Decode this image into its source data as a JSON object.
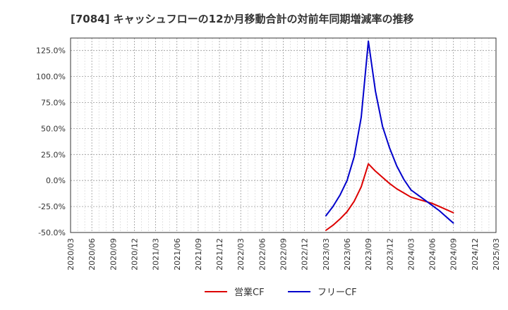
{
  "chart_data": {
    "type": "line",
    "title": "[7084]  キャッシュフローの12か月移動合計の対前年同期増減率の推移",
    "xlabel": "",
    "ylabel": "",
    "x_ticks": [
      "2020/03",
      "2020/06",
      "2020/09",
      "2020/12",
      "2021/03",
      "2021/06",
      "2021/09",
      "2021/12",
      "2022/03",
      "2022/06",
      "2022/09",
      "2022/12",
      "2023/03",
      "2023/06",
      "2023/09",
      "2023/12",
      "2024/03",
      "2024/06",
      "2024/09",
      "2024/12",
      "2025/03"
    ],
    "y_ticks": [
      "125.0%",
      "100.0%",
      "75.0%",
      "50.0%",
      "25.0%",
      "0.0%",
      "-25.0%",
      "-50.0%"
    ],
    "ylim": [
      -50,
      137
    ],
    "grid": true,
    "legend_position": "bottom",
    "series": [
      {
        "name": "営業CF",
        "color": "#dd0000",
        "x": [
          "2023/03",
          "2023/04",
          "2023/05",
          "2023/06",
          "2023/07",
          "2023/08",
          "2023/09",
          "2023/10",
          "2023/11",
          "2023/12",
          "2024/01",
          "2024/02",
          "2024/03",
          "2024/04",
          "2024/05",
          "2024/06",
          "2024/07",
          "2024/08",
          "2024/09"
        ],
        "values": [
          -48,
          -43,
          -37,
          -30,
          -20,
          -6,
          16,
          9,
          3,
          -3,
          -8,
          -12,
          -16,
          -18,
          -20,
          -22,
          -25,
          -28,
          -31
        ]
      },
      {
        "name": "フリーCF",
        "color": "#0000cc",
        "x": [
          "2023/03",
          "2023/04",
          "2023/05",
          "2023/06",
          "2023/07",
          "2023/08",
          "2023/09",
          "2023/10",
          "2023/11",
          "2023/12",
          "2024/01",
          "2024/02",
          "2024/03",
          "2024/04",
          "2024/05",
          "2024/06",
          "2024/07",
          "2024/08",
          "2024/09"
        ],
        "values": [
          -34,
          -25,
          -14,
          0,
          23,
          61,
          134,
          86,
          52,
          31,
          14,
          1,
          -9,
          -14,
          -19,
          -24,
          -29,
          -35,
          -41
        ]
      }
    ]
  }
}
